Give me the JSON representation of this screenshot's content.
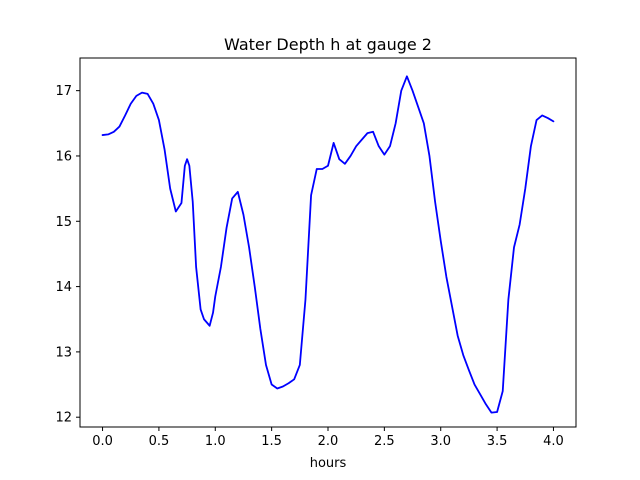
{
  "chart_data": {
    "type": "line",
    "title": "Water Depth h at gauge 2",
    "xlabel": "hours",
    "ylabel": "",
    "xlim": [
      -0.2,
      4.2
    ],
    "ylim": [
      11.85,
      17.5
    ],
    "grid": false,
    "x_ticks": [
      0.0,
      0.5,
      1.0,
      1.5,
      2.0,
      2.5,
      3.0,
      3.5,
      4.0
    ],
    "x_tick_labels": [
      "0.0",
      "0.5",
      "1.0",
      "1.5",
      "2.0",
      "2.5",
      "3.0",
      "3.5",
      "4.0"
    ],
    "y_ticks": [
      12,
      13,
      14,
      15,
      16,
      17
    ],
    "y_tick_labels": [
      "12",
      "13",
      "14",
      "15",
      "16",
      "17"
    ],
    "series": [
      {
        "name": "h",
        "color": "#0000ff",
        "x": [
          0.0,
          0.05,
          0.1,
          0.15,
          0.2,
          0.25,
          0.3,
          0.35,
          0.4,
          0.45,
          0.5,
          0.55,
          0.6,
          0.65,
          0.7,
          0.73,
          0.75,
          0.77,
          0.8,
          0.83,
          0.87,
          0.9,
          0.95,
          0.98,
          1.0,
          1.05,
          1.1,
          1.15,
          1.2,
          1.25,
          1.3,
          1.35,
          1.4,
          1.45,
          1.5,
          1.55,
          1.6,
          1.65,
          1.7,
          1.75,
          1.8,
          1.85,
          1.9,
          1.95,
          2.0,
          2.05,
          2.1,
          2.15,
          2.2,
          2.25,
          2.3,
          2.35,
          2.4,
          2.45,
          2.5,
          2.55,
          2.6,
          2.65,
          2.7,
          2.75,
          2.8,
          2.85,
          2.9,
          2.95,
          3.0,
          3.05,
          3.1,
          3.15,
          3.2,
          3.25,
          3.3,
          3.35,
          3.4,
          3.45,
          3.5,
          3.55,
          3.6,
          3.65,
          3.7,
          3.75,
          3.8,
          3.85,
          3.9,
          3.95,
          4.0
        ],
        "values": [
          16.32,
          16.33,
          16.37,
          16.45,
          16.62,
          16.8,
          16.92,
          16.97,
          16.95,
          16.8,
          16.55,
          16.1,
          15.5,
          15.15,
          15.28,
          15.85,
          15.95,
          15.85,
          15.3,
          14.3,
          13.65,
          13.5,
          13.4,
          13.6,
          13.85,
          14.3,
          14.9,
          15.35,
          15.45,
          15.1,
          14.6,
          14.0,
          13.35,
          12.8,
          12.5,
          12.44,
          12.47,
          12.52,
          12.58,
          12.8,
          13.8,
          15.4,
          15.8,
          15.8,
          15.85,
          16.2,
          15.95,
          15.88,
          16.0,
          16.15,
          16.25,
          16.35,
          16.37,
          16.15,
          16.02,
          16.15,
          16.5,
          17.0,
          17.22,
          17.0,
          16.75,
          16.5,
          16.0,
          15.3,
          14.7,
          14.15,
          13.7,
          13.25,
          12.95,
          12.72,
          12.5,
          12.35,
          12.2,
          12.07,
          12.08,
          12.4,
          13.8,
          14.6,
          14.95,
          15.5,
          16.15,
          16.55,
          16.62,
          16.58,
          16.53
        ]
      }
    ]
  }
}
